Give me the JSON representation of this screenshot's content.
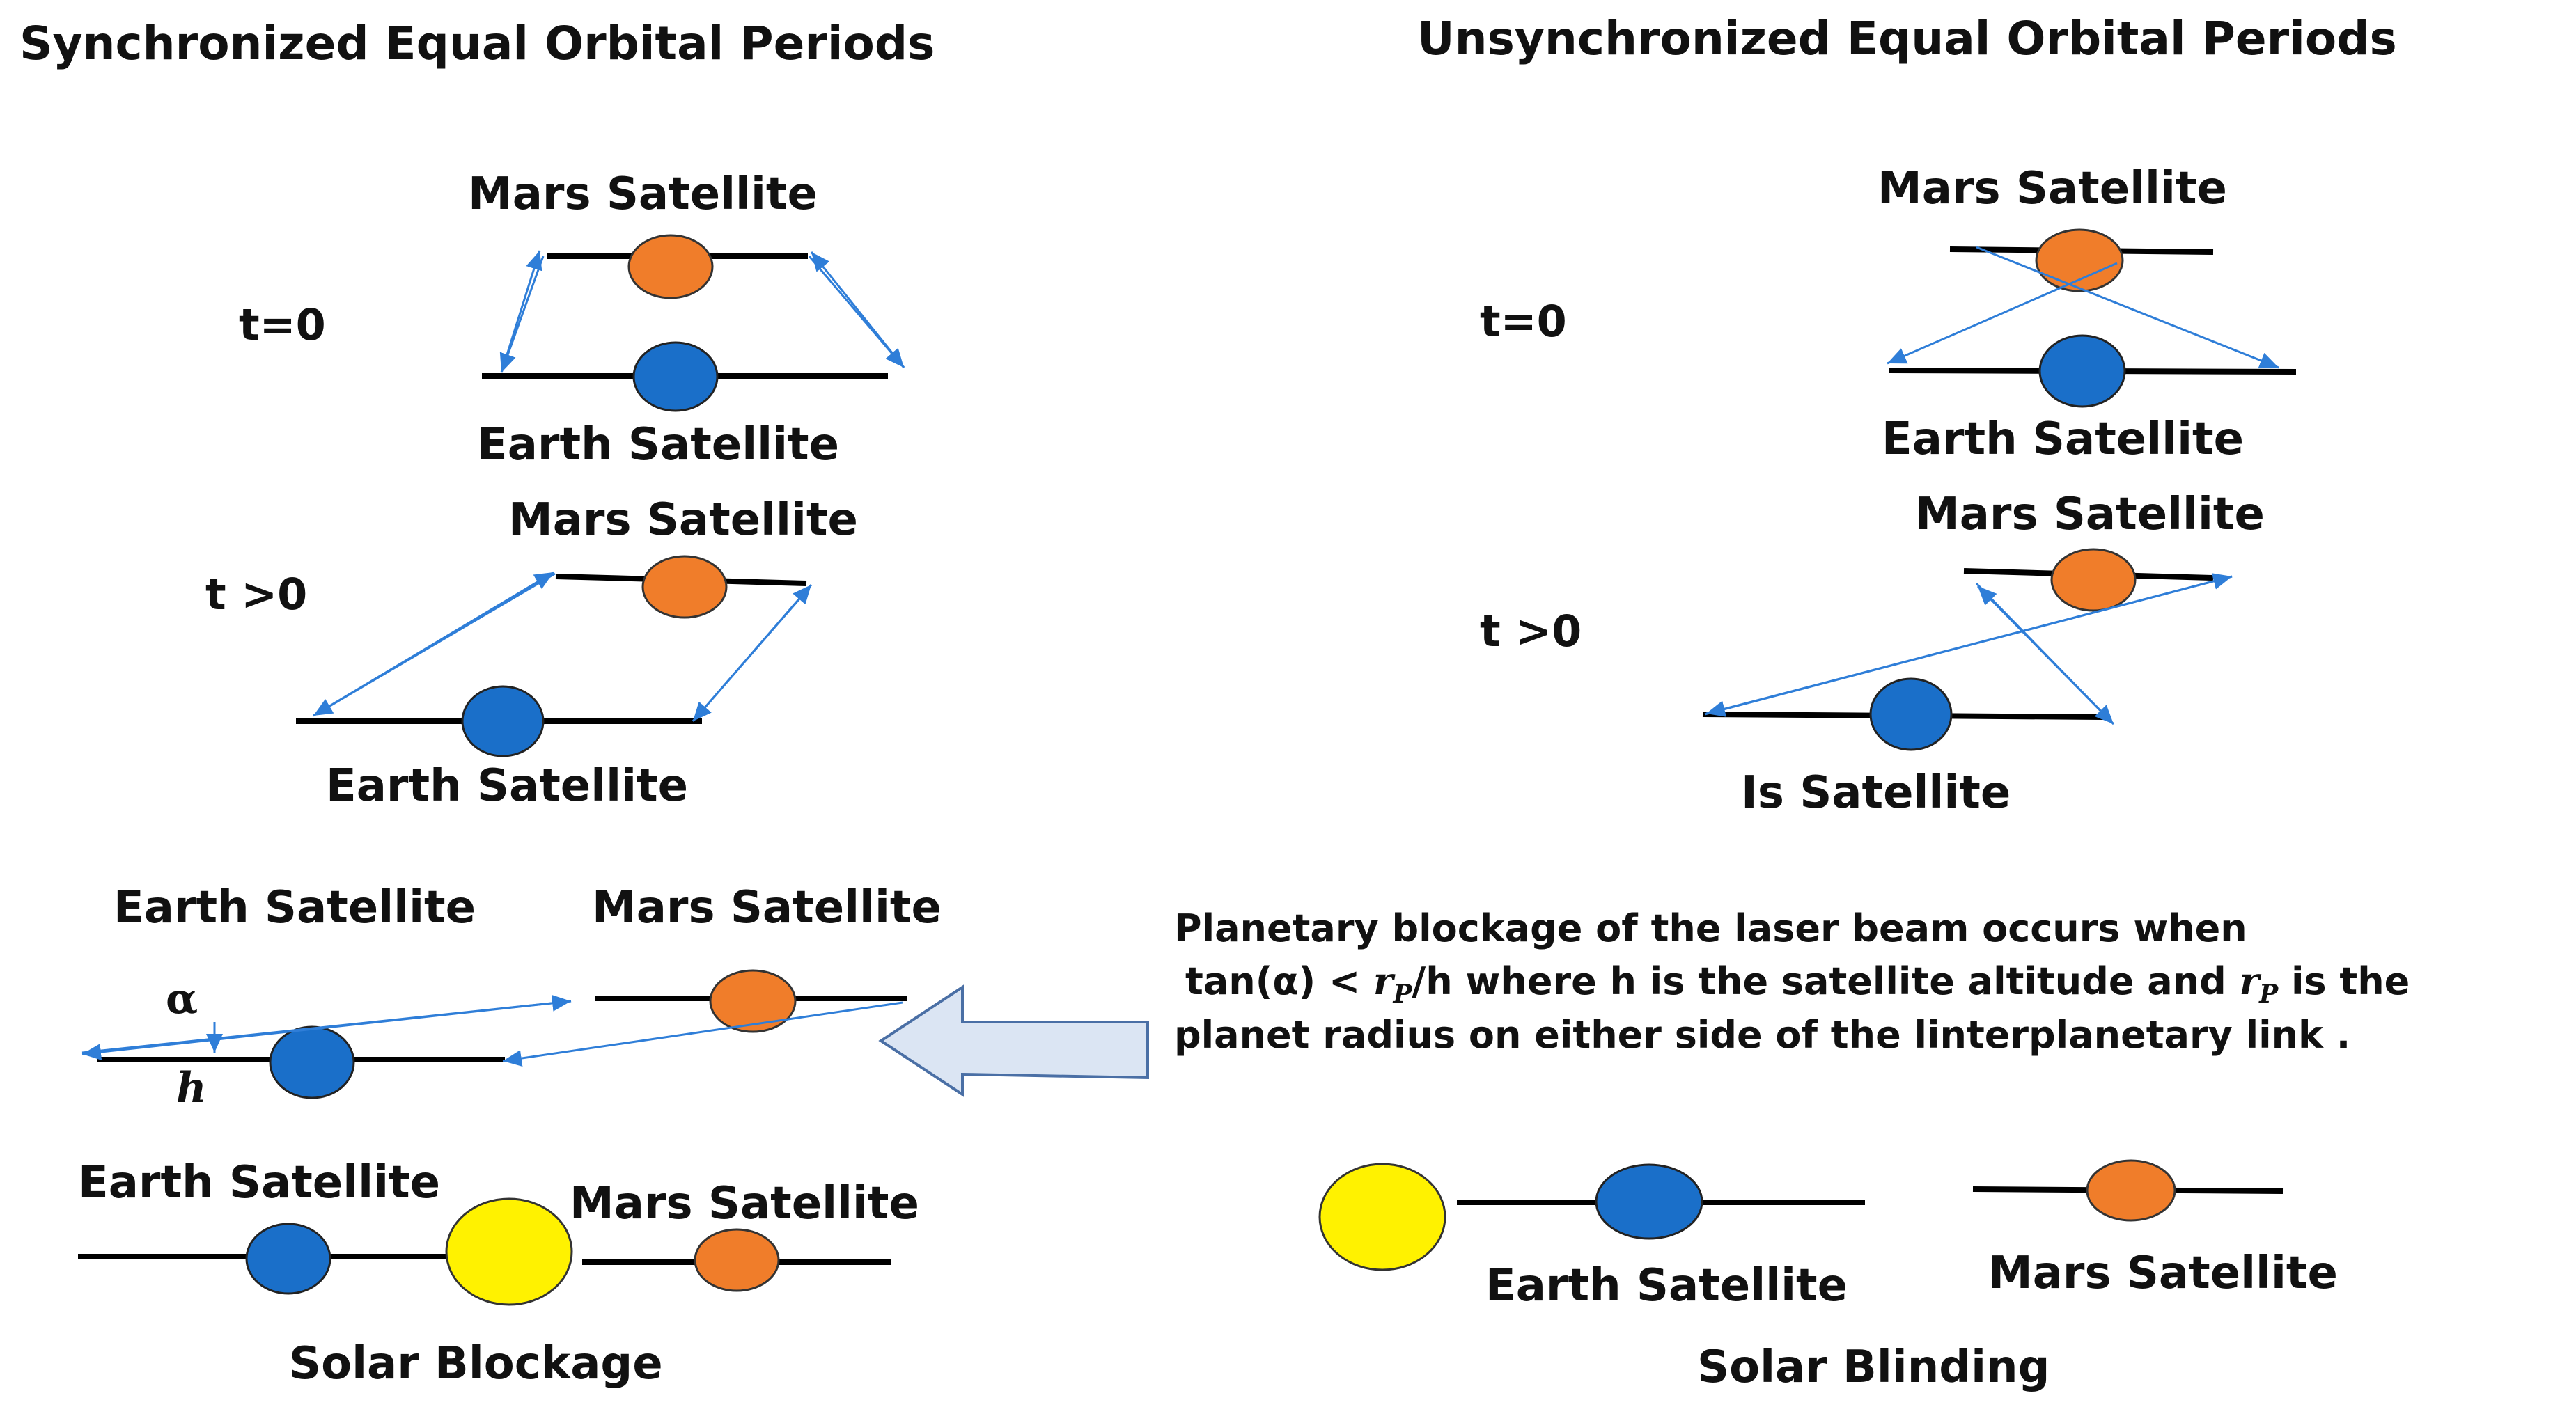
{
  "headers": {
    "synchronized": "Synchronized Equal Orbital Periods",
    "unsynchronized": "Unsynchronized Equal Orbital Periods"
  },
  "labels": {
    "mars": "Mars Satellite",
    "earth": "Earth Satellite",
    "is_satellite": "Is  Satellite",
    "t0": "t=0",
    "tgt0": "t >0",
    "alpha": "α",
    "h": "h",
    "solar_blockage": "Solar Blockage",
    "solar_blinding": "Solar  Blinding"
  },
  "note": {
    "line1": "Planetary blockage of the laser beam occurs when",
    "line2_a": "tan(α) < ",
    "line2_rp": "r",
    "line2_sub": "P",
    "line2_b": "/h where  h is the satellite altitude and  ",
    "line2_rp2": "r",
    "line2_sub2": "P",
    "line2_c": " is the",
    "line3": "planet radius on either side of the linterplanetary link ."
  },
  "colors": {
    "mars": "#f07d2a",
    "earth": "#1a6fc9",
    "sun": "#fff200",
    "beam": "#2f7ed8",
    "arrow_fill": "#dbe5f3",
    "arrow_stroke": "#4a6fa5"
  }
}
